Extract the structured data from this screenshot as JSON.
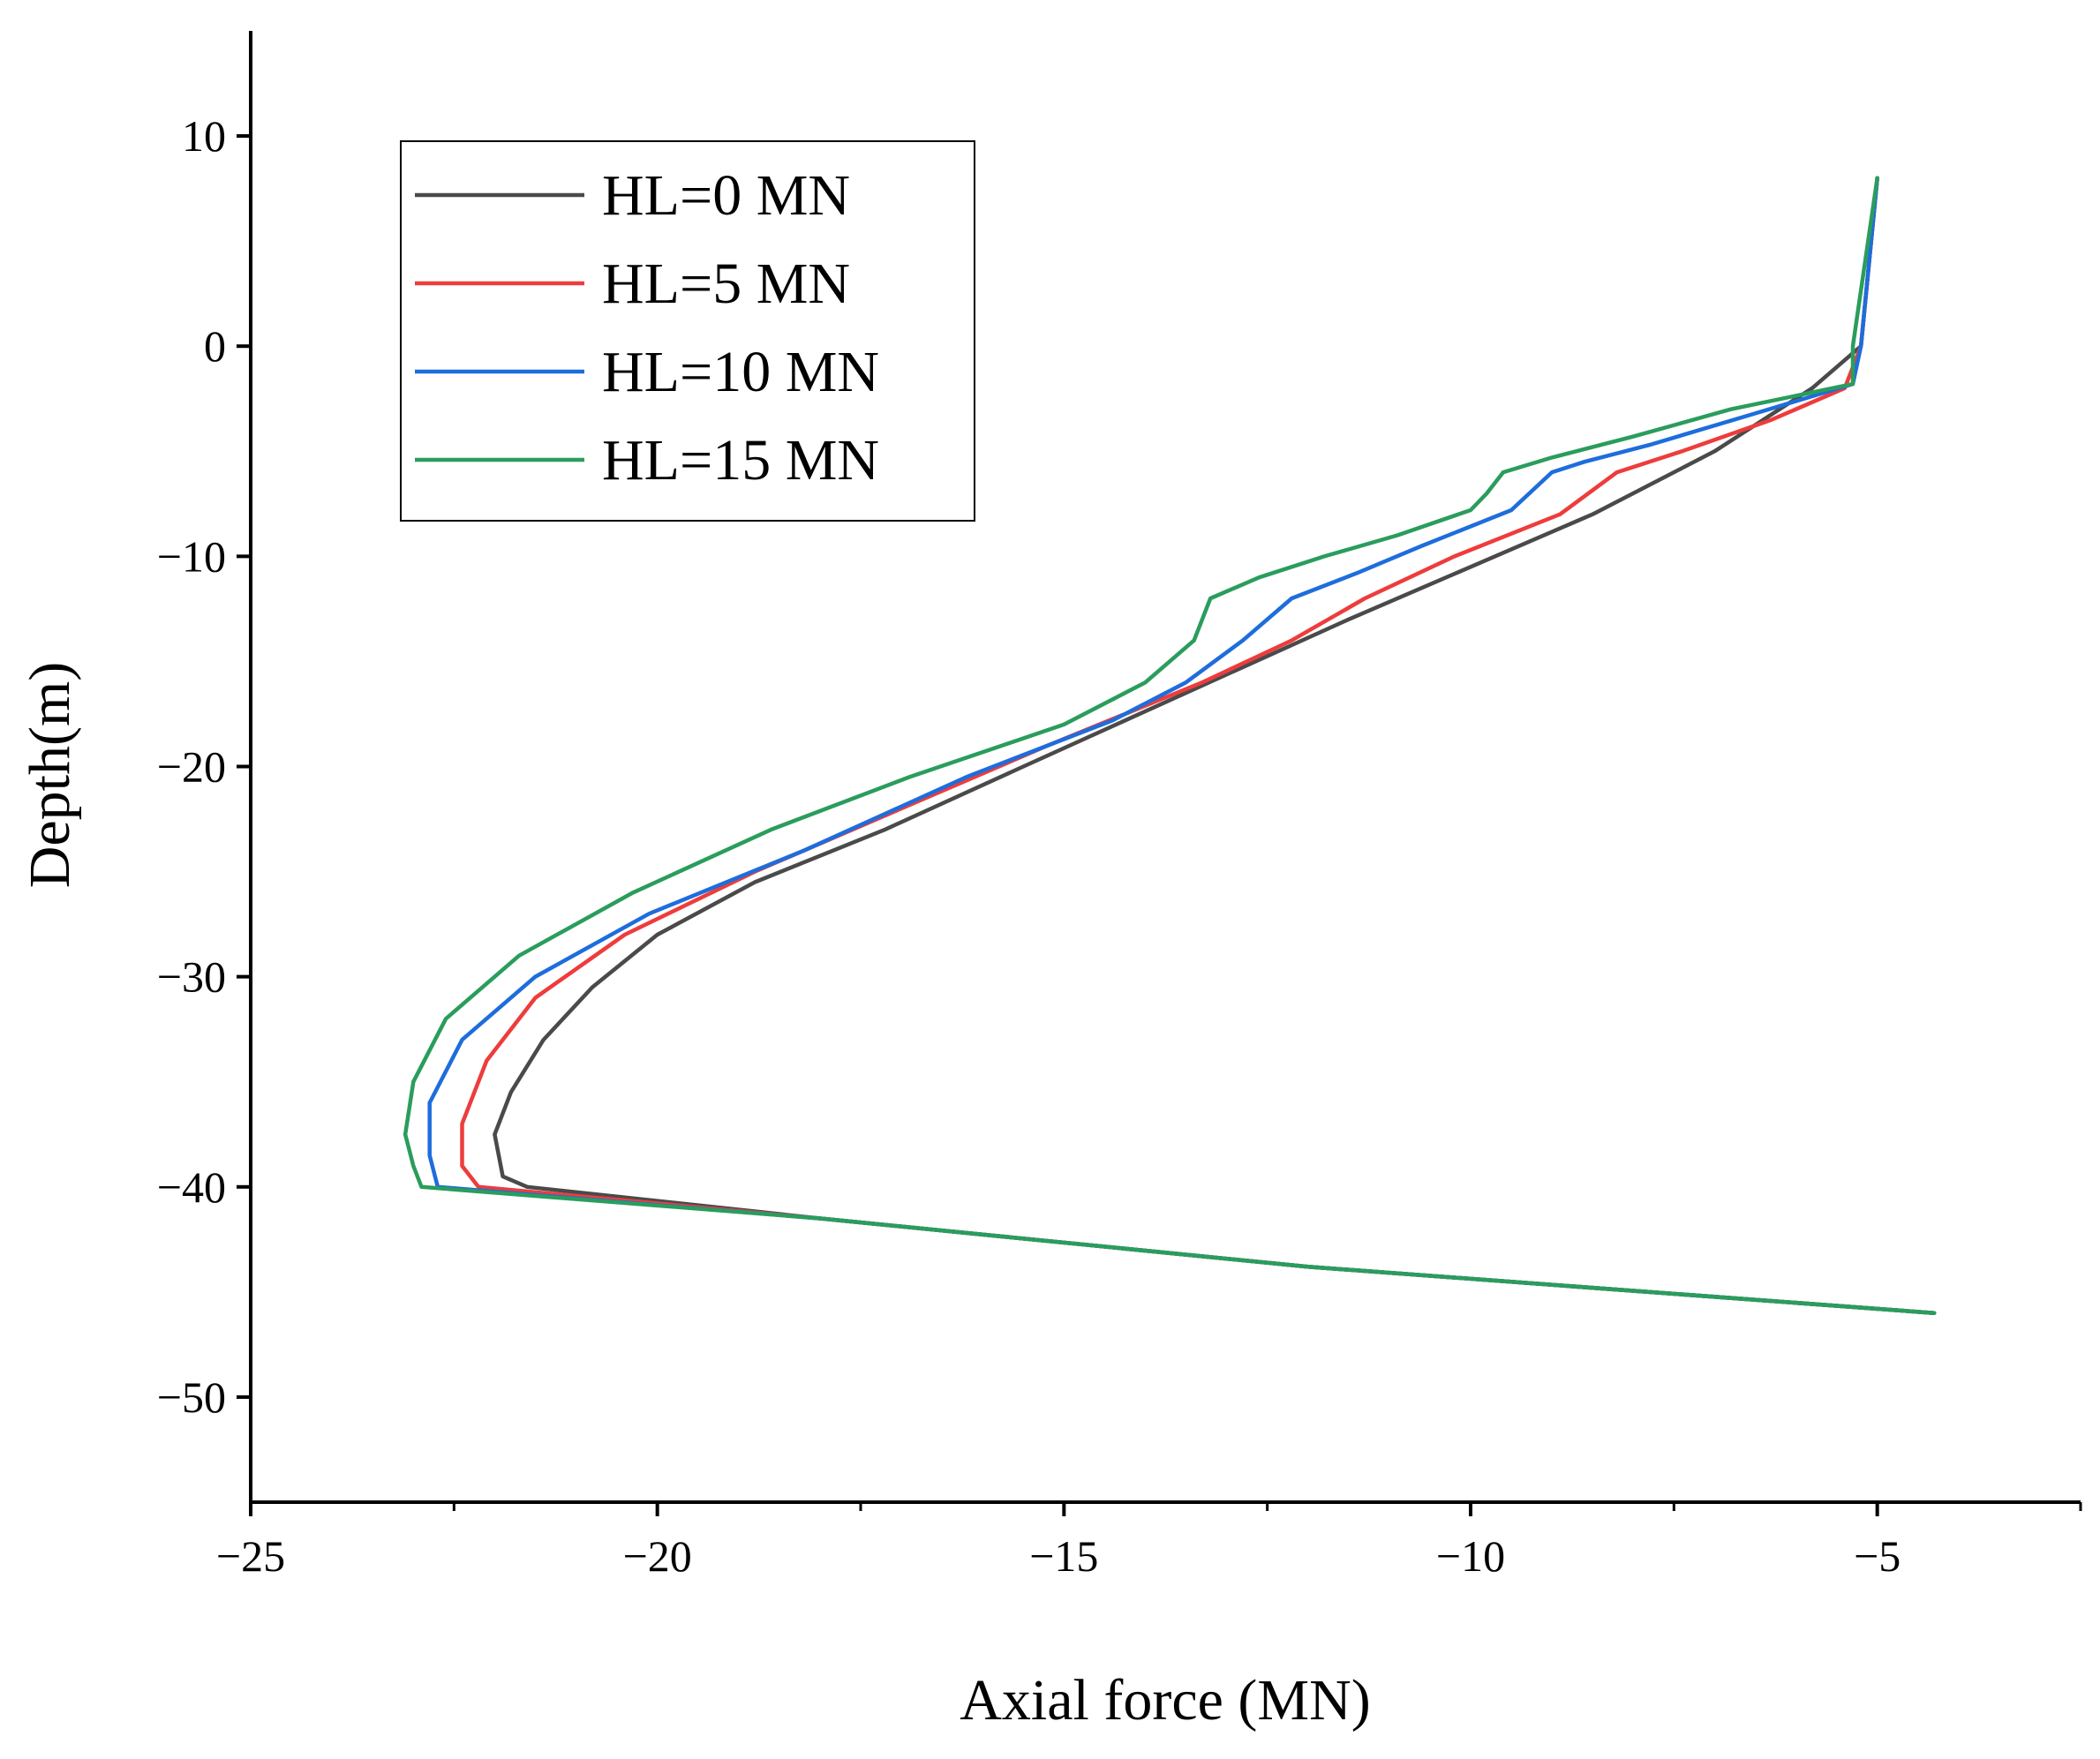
{
  "chart_data": {
    "type": "line",
    "title": "",
    "xlabel": "Axial force (MN)",
    "ylabel": "Depth(m)",
    "xlim": [
      -25,
      -2.5
    ],
    "ylim": [
      -55,
      15
    ],
    "x_ticks": [
      -25,
      -20,
      -15,
      -10,
      -5
    ],
    "x_tick_labels": [
      "−25",
      "−20",
      "−15",
      "−10",
      "−5"
    ],
    "y_ticks": [
      10,
      0,
      -10,
      -20,
      -30,
      -40,
      -50
    ],
    "y_tick_labels": [
      "10",
      "0",
      "−10",
      "−20",
      "−30",
      "−40",
      "−50"
    ],
    "legend_position": "top-left",
    "series": [
      {
        "name": "HL=0 MN",
        "color": "#4a4a4a",
        "points": [
          [
            -5.0,
            8
          ],
          [
            -5.2,
            0
          ],
          [
            -5.8,
            -2
          ],
          [
            -7.0,
            -5
          ],
          [
            -8.5,
            -8
          ],
          [
            -10.0,
            -10.5
          ],
          [
            -11.5,
            -13
          ],
          [
            -13.5,
            -16.5
          ],
          [
            -15.5,
            -20
          ],
          [
            -17.2,
            -23
          ],
          [
            -18.8,
            -25.5
          ],
          [
            -20.0,
            -28
          ],
          [
            -20.8,
            -30.5
          ],
          [
            -21.4,
            -33
          ],
          [
            -21.8,
            -35.5
          ],
          [
            -22.0,
            -37.5
          ],
          [
            -21.9,
            -39.5
          ],
          [
            -21.6,
            -40
          ],
          [
            -18.0,
            -41.5
          ],
          [
            -12.0,
            -43.8
          ],
          [
            -4.3,
            -46
          ]
        ]
      },
      {
        "name": "HL=5 MN",
        "color": "#ee3c3c",
        "points": [
          [
            -5.0,
            8
          ],
          [
            -5.2,
            0
          ],
          [
            -5.4,
            -2
          ],
          [
            -6.3,
            -3.5
          ],
          [
            -7.4,
            -5
          ],
          [
            -8.2,
            -6
          ],
          [
            -8.9,
            -8
          ],
          [
            -10.2,
            -10
          ],
          [
            -11.3,
            -12
          ],
          [
            -12.2,
            -14
          ],
          [
            -13.3,
            -16
          ],
          [
            -15.2,
            -19
          ],
          [
            -17.0,
            -22
          ],
          [
            -18.8,
            -25
          ],
          [
            -20.4,
            -28
          ],
          [
            -21.5,
            -31
          ],
          [
            -22.1,
            -34
          ],
          [
            -22.4,
            -37
          ],
          [
            -22.4,
            -39
          ],
          [
            -22.2,
            -40
          ],
          [
            -18.0,
            -41.5
          ],
          [
            -12.0,
            -43.8
          ],
          [
            -4.3,
            -46
          ]
        ]
      },
      {
        "name": "HL=10 MN",
        "color": "#1e6ddc",
        "points": [
          [
            -5.0,
            8
          ],
          [
            -5.2,
            0
          ],
          [
            -5.3,
            -1.8
          ],
          [
            -6.5,
            -3.2
          ],
          [
            -7.8,
            -4.7
          ],
          [
            -8.6,
            -5.5
          ],
          [
            -9.0,
            -6
          ],
          [
            -9.5,
            -7.8
          ],
          [
            -10.6,
            -9.5
          ],
          [
            -11.4,
            -10.8
          ],
          [
            -12.2,
            -12
          ],
          [
            -12.8,
            -14
          ],
          [
            -13.5,
            -16
          ],
          [
            -14.4,
            -17.8
          ],
          [
            -16.2,
            -20.5
          ],
          [
            -18.2,
            -24
          ],
          [
            -20.1,
            -27
          ],
          [
            -21.5,
            -30
          ],
          [
            -22.4,
            -33
          ],
          [
            -22.8,
            -36
          ],
          [
            -22.8,
            -38.5
          ],
          [
            -22.7,
            -40
          ],
          [
            -18.0,
            -41.5
          ],
          [
            -12.0,
            -43.8
          ],
          [
            -4.3,
            -46
          ]
        ]
      },
      {
        "name": "HL=15 MN",
        "color": "#2a9d5c",
        "points": [
          [
            -5.0,
            8
          ],
          [
            -5.3,
            0
          ],
          [
            -5.3,
            -1.8
          ],
          [
            -6.8,
            -3
          ],
          [
            -8.0,
            -4.3
          ],
          [
            -9.0,
            -5.3
          ],
          [
            -9.6,
            -6
          ],
          [
            -9.8,
            -7
          ],
          [
            -10.0,
            -7.8
          ],
          [
            -10.9,
            -9
          ],
          [
            -11.8,
            -10
          ],
          [
            -12.6,
            -11
          ],
          [
            -13.2,
            -12
          ],
          [
            -13.4,
            -14
          ],
          [
            -14.0,
            -16
          ],
          [
            -15.0,
            -18
          ],
          [
            -16.9,
            -20.5
          ],
          [
            -18.6,
            -23
          ],
          [
            -20.3,
            -26
          ],
          [
            -21.7,
            -29
          ],
          [
            -22.6,
            -32
          ],
          [
            -23.0,
            -35
          ],
          [
            -23.1,
            -37.5
          ],
          [
            -23.0,
            -39
          ],
          [
            -22.9,
            -40
          ],
          [
            -18.0,
            -41.5
          ],
          [
            -12.0,
            -43.8
          ],
          [
            -4.3,
            -46
          ]
        ]
      }
    ]
  }
}
